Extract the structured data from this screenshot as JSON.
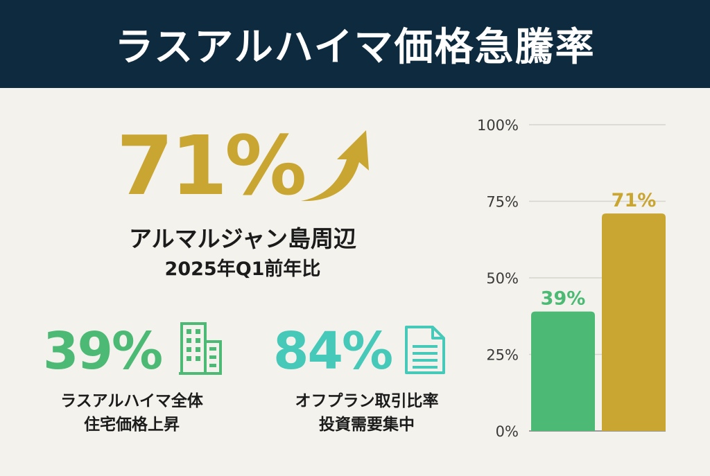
{
  "header": {
    "title": "ラスアルハイマ価格急騰率"
  },
  "hero": {
    "value": "71%",
    "label_line1": "アルマルジャン島周辺",
    "label_line2": "2025年Q1前年比",
    "arrow_icon": "trend-up-arrow-icon"
  },
  "stats": [
    {
      "value": "39%",
      "icon": "building-icon",
      "label_line1": "ラスアルハイマ全体",
      "label_line2": "住宅価格上昇",
      "color": "#4cba74"
    },
    {
      "value": "84%",
      "icon": "document-icon",
      "label_line1": "オフプラン取引比率",
      "label_line2": "投資需要集中",
      "color": "#46c9b8"
    }
  ],
  "colors": {
    "header_bg": "#0e2a3e",
    "gold": "#c9a532",
    "green": "#4cba74",
    "teal": "#46c9b8",
    "background": "#f3f2ed"
  },
  "chart_data": {
    "type": "bar",
    "title": "",
    "xlabel": "",
    "ylabel": "",
    "ylim": [
      0,
      100
    ],
    "yticks": [
      0,
      25,
      50,
      75,
      100
    ],
    "ytick_labels": [
      "0%",
      "25%",
      "50%",
      "75%",
      "100%"
    ],
    "grid": true,
    "categories": [
      "",
      ""
    ],
    "values": [
      39,
      71
    ],
    "data_labels": [
      "39%",
      "71%"
    ],
    "bar_colors": [
      "#4cba74",
      "#c9a532"
    ]
  }
}
